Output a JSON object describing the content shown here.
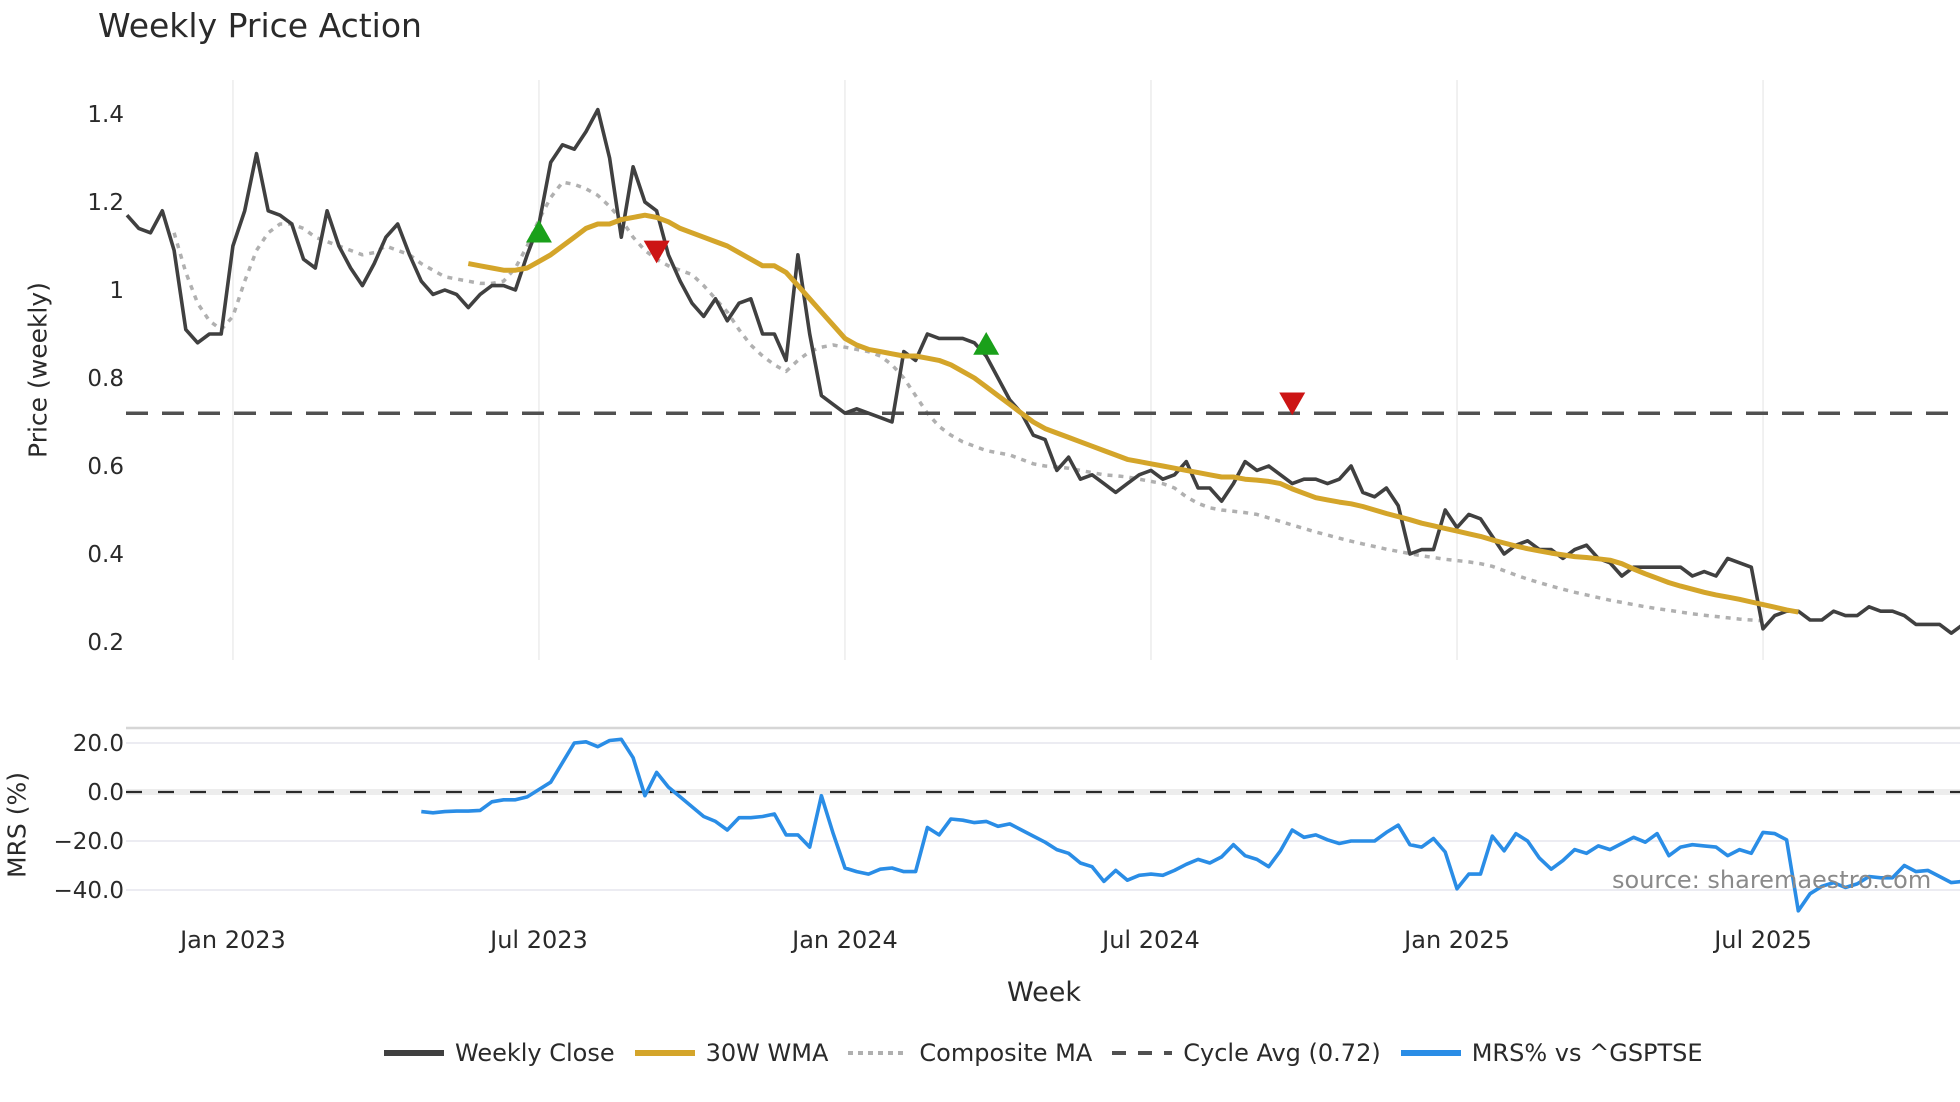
{
  "chart_data": {
    "type": "line",
    "title": "Weekly Price Action",
    "xlabel": "Week",
    "source_note": "source: sharemaestro.com",
    "x_ticks": [
      "Jan 2023",
      "Jul 2023",
      "Jan 2024",
      "Jul 2024",
      "Jan 2025",
      "Jul 2025"
    ],
    "panels": [
      {
        "name": "price",
        "ylabel": "Price (weekly)",
        "yticks": [
          "0.2",
          "0.4",
          "0.6",
          "0.8",
          "1",
          "1.2",
          "1.4"
        ],
        "ylim": [
          0.17,
          1.475
        ],
        "grid": true
      },
      {
        "name": "mrs",
        "ylabel": "MRS (%)",
        "yticks": [
          "−40.0",
          "−20.0",
          "0.0",
          "20.0"
        ],
        "ylim": [
          -48,
          26
        ],
        "grid": true
      }
    ],
    "x_start_week_offset_from_jan2023": -9,
    "weeks_per_half_year": 26,
    "series": [
      {
        "name": "Weekly Close",
        "panel": "price",
        "color": "#404040",
        "style": "solid",
        "start_index": 0,
        "values": [
          1.17,
          1.14,
          1.13,
          1.18,
          1.09,
          0.91,
          0.88,
          0.9,
          0.9,
          1.1,
          1.18,
          1.31,
          1.18,
          1.17,
          1.15,
          1.07,
          1.05,
          1.18,
          1.1,
          1.05,
          1.01,
          1.06,
          1.12,
          1.15,
          1.08,
          1.02,
          0.99,
          1.0,
          0.99,
          0.96,
          0.99,
          1.01,
          1.01,
          1.0,
          1.08,
          1.15,
          1.29,
          1.33,
          1.32,
          1.36,
          1.41,
          1.3,
          1.12,
          1.28,
          1.2,
          1.18,
          1.08,
          1.02,
          0.97,
          0.94,
          0.98,
          0.93,
          0.97,
          0.98,
          0.9,
          0.9,
          0.84,
          1.08,
          0.9,
          0.76,
          0.74,
          0.72,
          0.73,
          0.72,
          0.71,
          0.7,
          0.86,
          0.84,
          0.9,
          0.89,
          0.89,
          0.89,
          0.88,
          0.85,
          0.8,
          0.75,
          0.72,
          0.67,
          0.66,
          0.59,
          0.62,
          0.57,
          0.58,
          0.56,
          0.54,
          0.56,
          0.58,
          0.59,
          0.57,
          0.58,
          0.61,
          0.55,
          0.55,
          0.52,
          0.56,
          0.61,
          0.59,
          0.6,
          0.58,
          0.56,
          0.57,
          0.57,
          0.56,
          0.57,
          0.6,
          0.54,
          0.53,
          0.55,
          0.51,
          0.4,
          0.41,
          0.41,
          0.5,
          0.46,
          0.49,
          0.48,
          0.44,
          0.4,
          0.42,
          0.43,
          0.41,
          0.41,
          0.39,
          0.41,
          0.42,
          0.39,
          0.38,
          0.35,
          0.37,
          0.37,
          0.37,
          0.37,
          0.37,
          0.35,
          0.36,
          0.35,
          0.39,
          0.38,
          0.37,
          0.23,
          0.26,
          0.27,
          0.27,
          0.25,
          0.25,
          0.27,
          0.26,
          0.26,
          0.28,
          0.27,
          0.27,
          0.26,
          0.24,
          0.24,
          0.24,
          0.22,
          0.24
        ]
      },
      {
        "name": "30W WMA",
        "panel": "price",
        "color": "#d4a52a",
        "style": "solid",
        "start_index": 29,
        "values": [
          1.06,
          1.055,
          1.05,
          1.045,
          1.045,
          1.05,
          1.065,
          1.08,
          1.1,
          1.12,
          1.14,
          1.15,
          1.15,
          1.16,
          1.165,
          1.17,
          1.165,
          1.155,
          1.14,
          1.13,
          1.12,
          1.11,
          1.1,
          1.085,
          1.07,
          1.055,
          1.055,
          1.04,
          1.01,
          0.98,
          0.95,
          0.92,
          0.89,
          0.875,
          0.865,
          0.86,
          0.855,
          0.85,
          0.85,
          0.845,
          0.84,
          0.83,
          0.815,
          0.8,
          0.78,
          0.76,
          0.74,
          0.72,
          0.7,
          0.685,
          0.675,
          0.665,
          0.655,
          0.645,
          0.635,
          0.625,
          0.615,
          0.61,
          0.605,
          0.6,
          0.595,
          0.59,
          0.585,
          0.58,
          0.575,
          0.575,
          0.57,
          0.568,
          0.565,
          0.56,
          0.548,
          0.538,
          0.528,
          0.523,
          0.518,
          0.514,
          0.508,
          0.5,
          0.492,
          0.485,
          0.478,
          0.47,
          0.464,
          0.458,
          0.452,
          0.446,
          0.44,
          0.432,
          0.425,
          0.418,
          0.412,
          0.407,
          0.402,
          0.398,
          0.394,
          0.392,
          0.389,
          0.386,
          0.378,
          0.366,
          0.355,
          0.345,
          0.335,
          0.327,
          0.32,
          0.313,
          0.307,
          0.302,
          0.297,
          0.291,
          0.285,
          0.279,
          0.273,
          0.268
        ]
      },
      {
        "name": "Composite MA",
        "panel": "price",
        "color": "#b0b0b0",
        "style": "dotted",
        "start_index": 4,
        "values": [
          1.13,
          1.04,
          0.97,
          0.93,
          0.91,
          0.94,
          1.02,
          1.09,
          1.13,
          1.15,
          1.15,
          1.14,
          1.12,
          1.11,
          1.1,
          1.09,
          1.08,
          1.085,
          1.1,
          1.09,
          1.08,
          1.06,
          1.045,
          1.03,
          1.025,
          1.02,
          1.015,
          1.015,
          1.02,
          1.05,
          1.1,
          1.16,
          1.21,
          1.245,
          1.24,
          1.23,
          1.215,
          1.19,
          1.16,
          1.12,
          1.09,
          1.07,
          1.055,
          1.045,
          1.035,
          1.01,
          0.98,
          0.95,
          0.91,
          0.875,
          0.85,
          0.83,
          0.815,
          0.84,
          0.86,
          0.87,
          0.875,
          0.87,
          0.865,
          0.86,
          0.85,
          0.83,
          0.8,
          0.76,
          0.72,
          0.69,
          0.67,
          0.655,
          0.645,
          0.635,
          0.63,
          0.625,
          0.615,
          0.605,
          0.6,
          0.598,
          0.595,
          0.59,
          0.585,
          0.58,
          0.578,
          0.575,
          0.57,
          0.565,
          0.56,
          0.55,
          0.53,
          0.515,
          0.505,
          0.5,
          0.497,
          0.494,
          0.49,
          0.482,
          0.474,
          0.466,
          0.458,
          0.45,
          0.443,
          0.436,
          0.429,
          0.423,
          0.417,
          0.411,
          0.406,
          0.401,
          0.396,
          0.392,
          0.388,
          0.385,
          0.382,
          0.378,
          0.372,
          0.362,
          0.352,
          0.343,
          0.335,
          0.327,
          0.32,
          0.313,
          0.307,
          0.301,
          0.295,
          0.29,
          0.285,
          0.28,
          0.276,
          0.272,
          0.268,
          0.264,
          0.261,
          0.258,
          0.255,
          0.252,
          0.25,
          0.248
        ]
      },
      {
        "name": "Cycle Avg (0.72)",
        "panel": "price",
        "color": "#505050",
        "style": "dashed",
        "value": 0.72
      },
      {
        "name": "MRS% vs ^GSPTSE",
        "panel": "mrs",
        "color": "#2a8de6",
        "style": "solid",
        "start_index": 25,
        "values": [
          -8,
          -8.5,
          -8,
          -7.8,
          -7.8,
          -7.5,
          -4,
          -3.2,
          -3.2,
          -2,
          1,
          4,
          12,
          20,
          20.5,
          18.5,
          21,
          21.5,
          14,
          -1.5,
          8,
          2,
          -2,
          -6,
          -10,
          -12,
          -15.5,
          -10.5,
          -10.5,
          -10,
          -9,
          -17.5,
          -17.5,
          -22.5,
          -1.5,
          -17,
          -31,
          -32.5,
          -33.5,
          -31.5,
          -31,
          -32.5,
          -32.5,
          -14.5,
          -17.5,
          -11,
          -11.5,
          -12.5,
          -12,
          -14,
          -13,
          -15.5,
          -18,
          -20.5,
          -23.5,
          -25,
          -29,
          -30.5,
          -36.5,
          -32,
          -36,
          -34,
          -33.5,
          -34,
          -32,
          -29.5,
          -27.5,
          -29,
          -26.5,
          -21.5,
          -26,
          -27.5,
          -30.5,
          -24,
          -15.5,
          -18.5,
          -17.5,
          -19.5,
          -21,
          -20,
          -20,
          -20,
          -16.5,
          -13.5,
          -21.5,
          -22.5,
          -19,
          -24.5,
          -39.5,
          -33.5,
          -33.5,
          -18,
          -24,
          -17,
          -20,
          -27,
          -31.5,
          -28,
          -23.5,
          -25,
          -22,
          -23.5,
          -21,
          -18.5,
          -20.5,
          -17,
          -26,
          -22.5,
          -21.5,
          -22,
          -22.5,
          -26,
          -23.5,
          -25,
          -16.5,
          -17,
          -19.5,
          -48.5,
          -41.5,
          -38.5,
          -37,
          -39,
          -37.5,
          -34.5,
          -35,
          -35,
          -30,
          -32.5,
          -32,
          -34.5,
          -37,
          -36.5,
          -34,
          -38,
          -33
        ]
      }
    ],
    "markers": [
      {
        "type": "buy",
        "shape": "triangle-up",
        "color": "#1aa01a",
        "week_index": 35,
        "value": 1.13
      },
      {
        "type": "sell",
        "shape": "triangle-down",
        "color": "#cc1414",
        "week_index": 45,
        "value": 1.09
      },
      {
        "type": "buy",
        "shape": "triangle-up",
        "color": "#1aa01a",
        "week_index": 73,
        "value": 0.875
      },
      {
        "type": "sell",
        "shape": "triangle-down",
        "color": "#cc1414",
        "week_index": 99,
        "value": 0.745
      }
    ],
    "legend": {
      "position": "bottom",
      "entries": [
        "Weekly Close",
        "30W WMA",
        "Composite MA",
        "Cycle Avg (0.72)",
        "MRS% vs ^GSPTSE"
      ]
    }
  },
  "labels": {
    "title": "Weekly Price Action",
    "price_ylabel": "Price (weekly)",
    "mrs_ylabel": "MRS (%)",
    "xlabel": "Week",
    "source": "source: sharemaestro.com"
  }
}
